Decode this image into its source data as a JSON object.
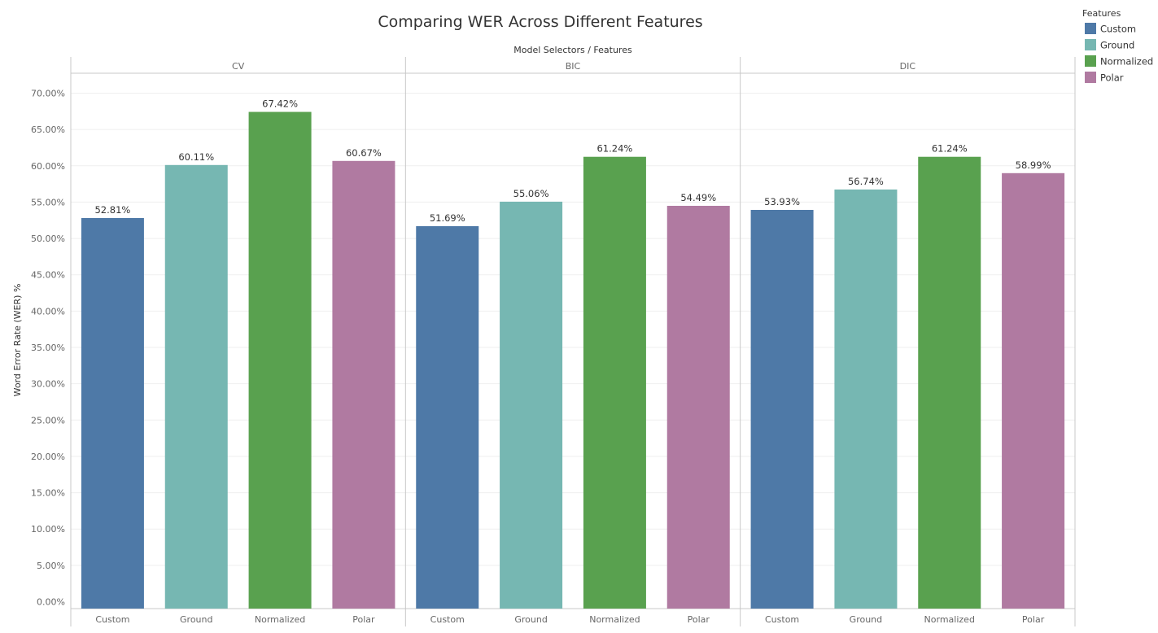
{
  "chart_data": {
    "type": "bar",
    "title": "Comparing WER Across Different Features",
    "column_header": "Model Selectors / Features",
    "ylabel": "Word Error Rate (WER) %",
    "ylim": [
      0,
      70
    ],
    "yticks": [
      0,
      5,
      10,
      15,
      20,
      25,
      30,
      35,
      40,
      45,
      50,
      55,
      60,
      65,
      70
    ],
    "ytick_labels": [
      "0.00%",
      "5.00%",
      "10.00%",
      "15.00%",
      "20.00%",
      "25.00%",
      "30.00%",
      "35.00%",
      "40.00%",
      "45.00%",
      "50.00%",
      "55.00%",
      "60.00%",
      "65.00%",
      "70.00%"
    ],
    "grid": true,
    "legend": {
      "title": "Features",
      "placement": "top-right",
      "items": [
        {
          "name": "Custom",
          "color": "#4e79a7"
        },
        {
          "name": "Ground",
          "color": "#76b7b2"
        },
        {
          "name": "Normalized",
          "color": "#59a14f"
        },
        {
          "name": "Polar",
          "color": "#b07aa1"
        }
      ]
    },
    "panes": [
      {
        "name": "CV",
        "categories": [
          "Custom",
          "Ground",
          "Normalized",
          "Polar"
        ],
        "values": [
          52.81,
          60.11,
          67.42,
          60.67
        ],
        "labels": [
          "52.81%",
          "60.11%",
          "67.42%",
          "60.67%"
        ]
      },
      {
        "name": "BIC",
        "categories": [
          "Custom",
          "Ground",
          "Normalized",
          "Polar"
        ],
        "values": [
          51.69,
          55.06,
          61.24,
          54.49
        ],
        "labels": [
          "51.69%",
          "55.06%",
          "61.24%",
          "54.49%"
        ]
      },
      {
        "name": "DIC",
        "categories": [
          "Custom",
          "Ground",
          "Normalized",
          "Polar"
        ],
        "values": [
          53.93,
          56.74,
          61.24,
          58.99
        ],
        "labels": [
          "53.93%",
          "56.74%",
          "61.24%",
          "58.99%"
        ]
      }
    ]
  }
}
